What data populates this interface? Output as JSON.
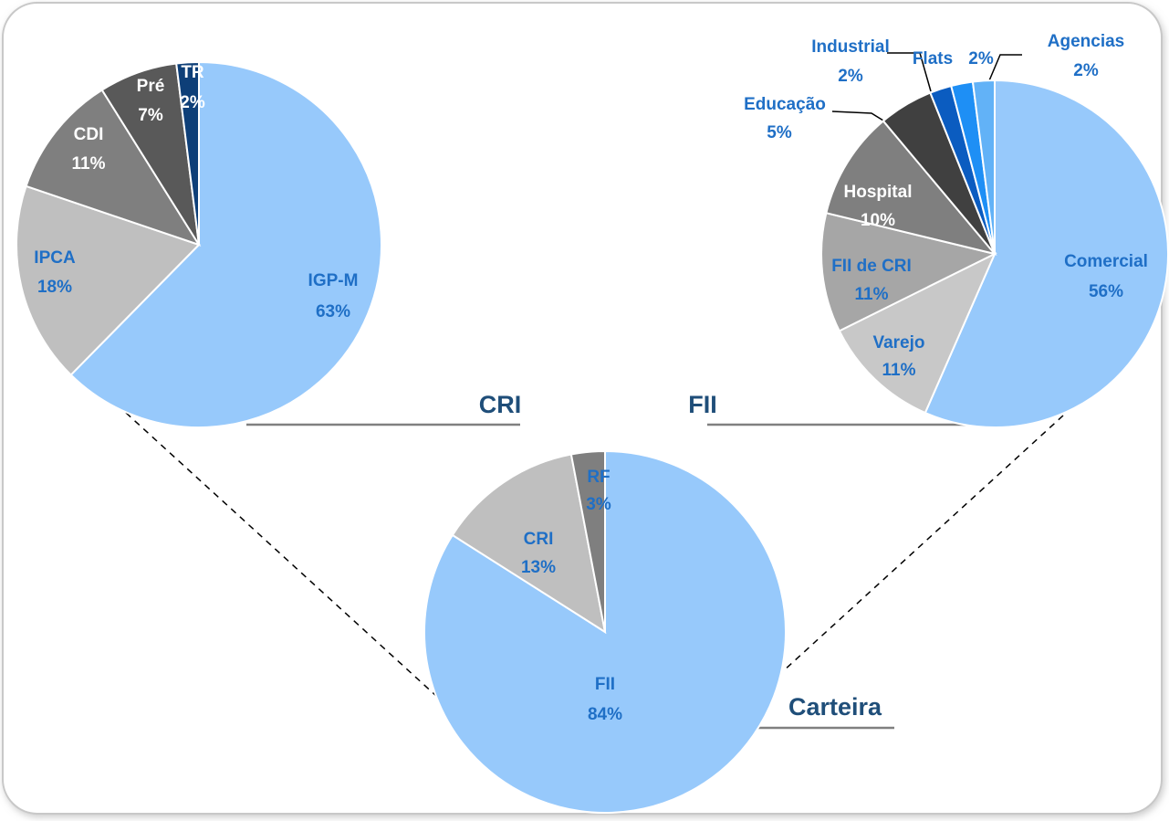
{
  "chart_data": [
    {
      "type": "pie",
      "title": "CRI",
      "categories": [
        "IGP-M",
        "IPCA",
        "CDI",
        "Pré",
        "TR"
      ],
      "values": [
        63,
        18,
        11,
        7,
        2
      ],
      "value_labels": [
        "63%",
        "18%",
        "11%",
        "7%",
        "2%"
      ],
      "colors": [
        "#97c9fb",
        "#bfbfbf",
        "#7f7f7f",
        "#595959",
        "#0e3f78"
      ]
    },
    {
      "type": "pie",
      "title": "FII",
      "categories": [
        "Comercial",
        "Varejo",
        "FII de CRI",
        "Hospital",
        "Educação",
        "Industrial",
        "Flats",
        "Agencias"
      ],
      "values": [
        56,
        11,
        11,
        10,
        5,
        2,
        2,
        2
      ],
      "value_labels": [
        "56%",
        "11%",
        "11%",
        "10%",
        "5%",
        "2%",
        "2%",
        "2%"
      ],
      "colors": [
        "#97c9fb",
        "#c8c8c8",
        "#a6a6a6",
        "#7f7f7f",
        "#404040",
        "#0b5cc0",
        "#1e8ff5",
        "#62b2f7"
      ]
    },
    {
      "type": "pie",
      "title": "Carteira",
      "categories": [
        "FII",
        "CRI",
        "RF"
      ],
      "values": [
        84,
        13,
        3
      ],
      "value_labels": [
        "84%",
        "13%",
        "3%"
      ],
      "colors": [
        "#97c9fb",
        "#bfbfbf",
        "#7f7f7f"
      ]
    }
  ]
}
